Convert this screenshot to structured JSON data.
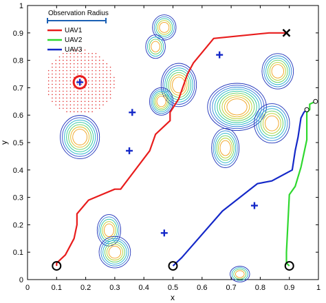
{
  "chart_data": {
    "type": "line",
    "title": "",
    "xlabel": "x",
    "ylabel": "y",
    "xlim": [
      0,
      1
    ],
    "ylim": [
      0,
      1
    ],
    "xticks": [
      "0",
      "0.1",
      "0.2",
      "0.3",
      "0.4",
      "0.5",
      "0.6",
      "0.7",
      "0.8",
      "0.9",
      "1"
    ],
    "yticks": [
      "0",
      "0.1",
      "0.2",
      "0.3",
      "0.4",
      "0.5",
      "0.6",
      "0.7",
      "0.8",
      "0.9",
      "1"
    ],
    "legend": {
      "placement": "top-left",
      "observation_radius_label": "Observation Radius",
      "entries": [
        {
          "name": "UAV1",
          "color": "#e81c1c"
        },
        {
          "name": "UAV2",
          "color": "#2ed82e"
        },
        {
          "name": "UAV3",
          "color": "#1428c8"
        }
      ]
    },
    "series": [
      {
        "name": "UAV1",
        "color": "#e81c1c",
        "points": [
          [
            0.1,
            0.05
          ],
          [
            0.1,
            0.06
          ],
          [
            0.13,
            0.09
          ],
          [
            0.16,
            0.15
          ],
          [
            0.17,
            0.2
          ],
          [
            0.17,
            0.24
          ],
          [
            0.21,
            0.29
          ],
          [
            0.3,
            0.33
          ],
          [
            0.32,
            0.33
          ],
          [
            0.42,
            0.47
          ],
          [
            0.44,
            0.53
          ],
          [
            0.49,
            0.58
          ],
          [
            0.49,
            0.61
          ],
          [
            0.52,
            0.66
          ],
          [
            0.54,
            0.72
          ],
          [
            0.55,
            0.75
          ],
          [
            0.57,
            0.79
          ],
          [
            0.64,
            0.88
          ],
          [
            0.83,
            0.9
          ],
          [
            0.86,
            0.9
          ],
          [
            0.89,
            0.9
          ]
        ]
      },
      {
        "name": "UAV2",
        "color": "#2ed82e",
        "points": [
          [
            0.9,
            0.05
          ],
          [
            0.89,
            0.06
          ],
          [
            0.89,
            0.1
          ],
          [
            0.9,
            0.31
          ],
          [
            0.92,
            0.34
          ],
          [
            0.94,
            0.41
          ],
          [
            0.96,
            0.51
          ],
          [
            0.96,
            0.6
          ],
          [
            0.96,
            0.61
          ],
          [
            0.97,
            0.62
          ],
          [
            0.97,
            0.64
          ],
          [
            0.99,
            0.65
          ]
        ]
      },
      {
        "name": "UAV3",
        "color": "#1428c8",
        "points": [
          [
            0.5,
            0.05
          ],
          [
            0.53,
            0.08
          ],
          [
            0.67,
            0.25
          ],
          [
            0.79,
            0.35
          ],
          [
            0.84,
            0.36
          ],
          [
            0.91,
            0.4
          ],
          [
            0.92,
            0.47
          ],
          [
            0.93,
            0.52
          ],
          [
            0.94,
            0.59
          ],
          [
            0.95,
            0.61
          ],
          [
            0.96,
            0.62
          ]
        ]
      }
    ],
    "start_markers": [
      [
        0.1,
        0.05
      ],
      [
        0.5,
        0.05
      ],
      [
        0.9,
        0.05
      ]
    ],
    "end_x_marker": [
      0.89,
      0.9
    ],
    "small_circle_markers": [
      [
        0.99,
        0.65
      ],
      [
        0.96,
        0.62
      ]
    ],
    "target_crosses": [
      [
        0.18,
        0.72
      ],
      [
        0.36,
        0.61
      ],
      [
        0.35,
        0.47
      ],
      [
        0.66,
        0.82
      ],
      [
        0.47,
        0.17
      ],
      [
        0.78,
        0.27
      ]
    ],
    "observation_circle": [
      0.18,
      0.72
    ],
    "observation_radius": 0.12,
    "contour_peaks": [
      {
        "center": [
          0.52,
          0.71
        ],
        "radii": [
          0.045,
          0.055
        ],
        "levels": 7
      },
      {
        "center": [
          0.47,
          0.92
        ],
        "radii": [
          0.03,
          0.032
        ],
        "levels": 5
      },
      {
        "center": [
          0.44,
          0.85
        ],
        "radii": [
          0.025,
          0.03
        ],
        "levels": 4
      },
      {
        "center": [
          0.18,
          0.52
        ],
        "radii": [
          0.05,
          0.055
        ],
        "levels": 7
      },
      {
        "center": [
          0.46,
          0.65
        ],
        "radii": [
          0.03,
          0.035
        ],
        "levels": 6
      },
      {
        "center": [
          0.72,
          0.63
        ],
        "radii": [
          0.075,
          0.06
        ],
        "levels": 9
      },
      {
        "center": [
          0.68,
          0.48
        ],
        "radii": [
          0.035,
          0.05
        ],
        "levels": 6
      },
      {
        "center": [
          0.86,
          0.76
        ],
        "radii": [
          0.04,
          0.045
        ],
        "levels": 6
      },
      {
        "center": [
          0.84,
          0.57
        ],
        "radii": [
          0.045,
          0.05
        ],
        "levels": 6
      },
      {
        "center": [
          0.28,
          0.18
        ],
        "radii": [
          0.03,
          0.04
        ],
        "levels": 5
      },
      {
        "center": [
          0.3,
          0.1
        ],
        "radii": [
          0.04,
          0.04
        ],
        "levels": 6
      },
      {
        "center": [
          0.73,
          0.02
        ],
        "radii": [
          0.025,
          0.02
        ],
        "levels": 4
      }
    ]
  }
}
